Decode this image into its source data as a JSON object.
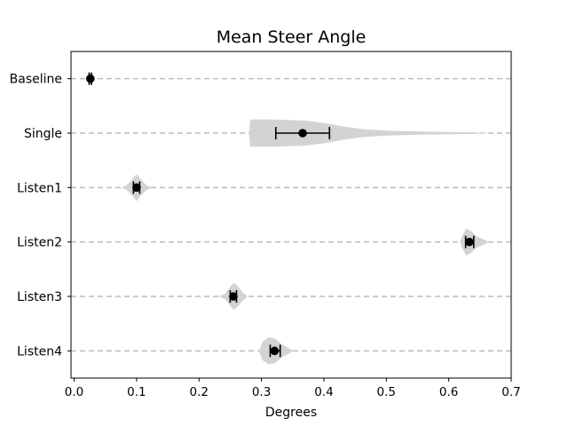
{
  "chart_data": {
    "type": "violin",
    "title": "Mean Steer Angle",
    "xlabel": "Degrees",
    "ylabel": "",
    "xlim": [
      -0.005,
      0.7
    ],
    "xticks": [
      {
        "value": 0.0,
        "label": "0.0"
      },
      {
        "value": 0.1,
        "label": "0.1"
      },
      {
        "value": 0.2,
        "label": "0.2"
      },
      {
        "value": 0.3,
        "label": "0.3"
      },
      {
        "value": 0.4,
        "label": "0.4"
      },
      {
        "value": 0.5,
        "label": "0.5"
      },
      {
        "value": 0.6,
        "label": "0.6"
      },
      {
        "value": 0.7,
        "label": "0.7"
      }
    ],
    "grid": {
      "axis": "y",
      "style": "dashed",
      "color": "#bbbbbb"
    },
    "violin_color": "#d3d3d3",
    "point_color": "#000000",
    "series": [
      {
        "name": "Baseline",
        "mean": 0.026,
        "err_low": 0.024,
        "err_high": 0.028,
        "violin": [
          [
            0.024,
            0.3
          ],
          [
            0.026,
            0.5
          ],
          [
            0.028,
            0.3
          ]
        ]
      },
      {
        "name": "Single",
        "mean": 0.366,
        "err_low": 0.323,
        "err_high": 0.409,
        "violin": [
          [
            0.28,
            0.0
          ],
          [
            0.282,
            1.0
          ],
          [
            0.32,
            1.0
          ],
          [
            0.37,
            0.92
          ],
          [
            0.4,
            0.75
          ],
          [
            0.43,
            0.5
          ],
          [
            0.46,
            0.3
          ],
          [
            0.5,
            0.18
          ],
          [
            0.55,
            0.12
          ],
          [
            0.6,
            0.08
          ],
          [
            0.64,
            0.06
          ],
          [
            0.668,
            0.0
          ]
        ]
      },
      {
        "name": "Listen1",
        "mean": 0.1,
        "err_low": 0.095,
        "err_high": 0.105,
        "violin": [
          [
            0.076,
            0.0
          ],
          [
            0.085,
            0.2
          ],
          [
            0.093,
            0.6
          ],
          [
            0.1,
            1.0
          ],
          [
            0.107,
            0.6
          ],
          [
            0.115,
            0.2
          ],
          [
            0.124,
            0.0
          ]
        ]
      },
      {
        "name": "Listen2",
        "mean": 0.633,
        "err_low": 0.627,
        "err_high": 0.64,
        "violin": [
          [
            0.618,
            0.0
          ],
          [
            0.622,
            0.5
          ],
          [
            0.628,
            1.0
          ],
          [
            0.636,
            0.8
          ],
          [
            0.645,
            0.4
          ],
          [
            0.656,
            0.2
          ],
          [
            0.664,
            0.0
          ]
        ]
      },
      {
        "name": "Listen3",
        "mean": 0.255,
        "err_low": 0.25,
        "err_high": 0.26,
        "violin": [
          [
            0.232,
            0.0
          ],
          [
            0.242,
            0.2
          ],
          [
            0.25,
            0.7
          ],
          [
            0.256,
            1.0
          ],
          [
            0.263,
            0.7
          ],
          [
            0.27,
            0.3
          ],
          [
            0.278,
            0.0
          ]
        ]
      },
      {
        "name": "Listen4",
        "mean": 0.321,
        "err_low": 0.314,
        "err_high": 0.33,
        "violin": [
          [
            0.296,
            0.0
          ],
          [
            0.302,
            0.7
          ],
          [
            0.312,
            1.0
          ],
          [
            0.322,
            0.9
          ],
          [
            0.332,
            0.5
          ],
          [
            0.342,
            0.25
          ],
          [
            0.352,
            0.0
          ]
        ]
      }
    ]
  }
}
